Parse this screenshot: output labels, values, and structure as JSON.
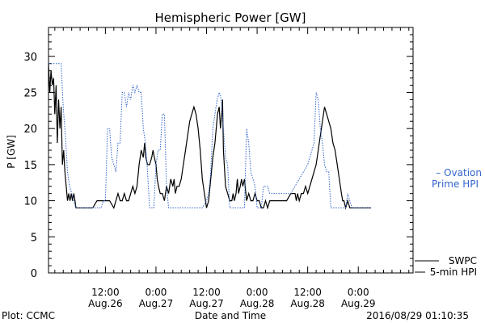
{
  "chart_data": {
    "type": "line",
    "title": "Hemispheric Power [GW]",
    "ylabel": "P [GW]",
    "xlabel": "Date and Time",
    "ylim": [
      0,
      34
    ],
    "y_ticks": [
      0,
      5,
      10,
      15,
      20,
      25,
      30
    ],
    "x_range_hours": [
      -1.5,
      85
    ],
    "x_ticks": [
      {
        "hour": 12,
        "line1": "12:00",
        "line2": "Aug.26"
      },
      {
        "hour": 24,
        "line1": "0:00",
        "line2": "Aug.27"
      },
      {
        "hour": 36,
        "line1": "12:00",
        "line2": "Aug.27"
      },
      {
        "hour": 48,
        "line1": "0:00",
        "line2": "Aug.28"
      },
      {
        "hour": 60,
        "line1": "12:00",
        "line2": "Aug.28"
      },
      {
        "hour": 72,
        "line1": "0:00",
        "line2": "Aug.29"
      }
    ],
    "grid": false,
    "series": [
      {
        "name": "SWPC 5-min HPI",
        "legend_lines": [
          "SWPC",
          "5-min HPI"
        ],
        "color": "#000000",
        "style": "solid",
        "points": [
          [
            -1.5,
            29
          ],
          [
            -1.2,
            25
          ],
          [
            -0.9,
            28
          ],
          [
            -0.6,
            26
          ],
          [
            -0.3,
            27
          ],
          [
            0,
            22
          ],
          [
            0.3,
            26
          ],
          [
            0.6,
            18
          ],
          [
            0.9,
            24
          ],
          [
            1.2,
            20
          ],
          [
            1.5,
            23
          ],
          [
            1.8,
            15
          ],
          [
            2.1,
            17
          ],
          [
            2.4,
            14
          ],
          [
            2.7,
            12
          ],
          [
            3,
            10
          ],
          [
            3.3,
            11
          ],
          [
            3.6,
            10
          ],
          [
            3.9,
            11
          ],
          [
            4.2,
            10
          ],
          [
            4.5,
            11
          ],
          [
            4.8,
            10
          ],
          [
            5,
            9
          ],
          [
            6,
            9
          ],
          [
            7,
            9
          ],
          [
            8,
            9
          ],
          [
            9,
            9
          ],
          [
            10,
            10
          ],
          [
            11,
            10
          ],
          [
            12,
            10
          ],
          [
            13,
            10
          ],
          [
            14,
            9
          ],
          [
            14.5,
            10
          ],
          [
            15,
            11
          ],
          [
            15.5,
            10
          ],
          [
            16,
            10
          ],
          [
            16.5,
            11
          ],
          [
            17,
            10
          ],
          [
            17.5,
            10
          ],
          [
            18,
            11
          ],
          [
            18.5,
            12
          ],
          [
            19,
            11
          ],
          [
            19.5,
            12
          ],
          [
            20,
            15
          ],
          [
            20.5,
            17
          ],
          [
            21,
            16
          ],
          [
            21.3,
            18
          ],
          [
            21.6,
            16
          ],
          [
            22,
            15
          ],
          [
            22.5,
            15
          ],
          [
            23,
            16
          ],
          [
            23.3,
            17
          ],
          [
            23.6,
            16
          ],
          [
            24,
            15
          ],
          [
            24.3,
            13
          ],
          [
            24.6,
            12
          ],
          [
            25,
            11
          ],
          [
            25.5,
            11
          ],
          [
            26,
            10
          ],
          [
            26.5,
            12
          ],
          [
            27,
            11
          ],
          [
            27.5,
            13
          ],
          [
            28,
            12
          ],
          [
            28.3,
            13
          ],
          [
            28.6,
            11
          ],
          [
            29,
            12
          ],
          [
            29.5,
            12
          ],
          [
            30,
            13
          ],
          [
            30.5,
            15
          ],
          [
            31,
            17
          ],
          [
            31.5,
            19
          ],
          [
            32,
            21
          ],
          [
            32.5,
            22
          ],
          [
            33,
            23
          ],
          [
            33.5,
            22
          ],
          [
            34,
            20
          ],
          [
            34.5,
            17
          ],
          [
            35,
            13
          ],
          [
            35.5,
            11
          ],
          [
            36,
            9
          ],
          [
            36.5,
            10
          ],
          [
            37,
            13
          ],
          [
            37.5,
            16
          ],
          [
            38,
            18
          ],
          [
            38.3,
            20
          ],
          [
            38.6,
            22
          ],
          [
            39,
            23
          ],
          [
            39.3,
            20
          ],
          [
            39.6,
            22
          ],
          [
            39.8,
            24
          ],
          [
            40,
            17
          ],
          [
            40.5,
            12
          ],
          [
            41,
            11
          ],
          [
            41.5,
            10
          ],
          [
            42,
            10
          ],
          [
            42.3,
            11
          ],
          [
            42.6,
            10
          ],
          [
            43,
            11
          ],
          [
            43.3,
            13
          ],
          [
            43.6,
            11
          ],
          [
            44,
            12
          ],
          [
            44.3,
            13
          ],
          [
            44.6,
            12
          ],
          [
            45,
            13
          ],
          [
            45.5,
            10
          ],
          [
            46,
            11
          ],
          [
            46.5,
            10
          ],
          [
            47,
            10
          ],
          [
            47.5,
            11
          ],
          [
            48,
            10
          ],
          [
            48.5,
            10
          ],
          [
            49,
            9
          ],
          [
            49.5,
            9
          ],
          [
            50,
            10
          ],
          [
            50.5,
            9
          ],
          [
            51,
            10
          ],
          [
            52,
            10
          ],
          [
            53,
            10
          ],
          [
            54,
            10
          ],
          [
            55,
            10
          ],
          [
            56,
            11
          ],
          [
            57,
            11
          ],
          [
            57.3,
            10
          ],
          [
            57.6,
            11
          ],
          [
            58,
            10
          ],
          [
            58.5,
            11
          ],
          [
            59,
            11
          ],
          [
            59.5,
            12
          ],
          [
            60,
            11
          ],
          [
            60.5,
            12
          ],
          [
            61,
            13
          ],
          [
            61.5,
            14
          ],
          [
            62,
            15
          ],
          [
            62.5,
            17
          ],
          [
            63,
            19
          ],
          [
            63.5,
            21
          ],
          [
            64,
            23
          ],
          [
            64.5,
            22
          ],
          [
            65,
            21
          ],
          [
            65.5,
            20
          ],
          [
            66,
            18
          ],
          [
            66.5,
            17
          ],
          [
            67,
            15
          ],
          [
            67.5,
            13
          ],
          [
            68,
            11
          ],
          [
            68.3,
            10
          ],
          [
            68.6,
            10
          ],
          [
            69,
            9
          ],
          [
            69.5,
            10
          ],
          [
            70,
            9
          ],
          [
            70.5,
            9
          ],
          [
            71,
            9
          ],
          [
            72,
            9
          ],
          [
            73,
            9
          ],
          [
            74,
            9
          ],
          [
            75,
            9
          ]
        ]
      },
      {
        "name": "Ovation Prime HPI",
        "legend_lines": [
          "– Ovation",
          "Prime HPI"
        ],
        "color": "#3366cc",
        "style": "dotted",
        "points": [
          [
            -1.5,
            29
          ],
          [
            0,
            29
          ],
          [
            1,
            29
          ],
          [
            1.5,
            29
          ],
          [
            2,
            23
          ],
          [
            2.5,
            19
          ],
          [
            3,
            14
          ],
          [
            3.5,
            12
          ],
          [
            4,
            11
          ],
          [
            4.5,
            10
          ],
          [
            5,
            9
          ],
          [
            6,
            9
          ],
          [
            7,
            9
          ],
          [
            8,
            9
          ],
          [
            9,
            9
          ],
          [
            10,
            9
          ],
          [
            10.5,
            9
          ],
          [
            11,
            9
          ],
          [
            11.5,
            10
          ],
          [
            12,
            10
          ],
          [
            12.5,
            20
          ],
          [
            13,
            20
          ],
          [
            13.5,
            16
          ],
          [
            14,
            15
          ],
          [
            14.5,
            14
          ],
          [
            15,
            18
          ],
          [
            15.5,
            18
          ],
          [
            16,
            25
          ],
          [
            16.5,
            25
          ],
          [
            17,
            23
          ],
          [
            17.5,
            25
          ],
          [
            18,
            24
          ],
          [
            18.5,
            26
          ],
          [
            19,
            25
          ],
          [
            19.5,
            26
          ],
          [
            20,
            25
          ],
          [
            20.5,
            25
          ],
          [
            21,
            20
          ],
          [
            21.5,
            18
          ],
          [
            22,
            14
          ],
          [
            22.5,
            9
          ],
          [
            23,
            9
          ],
          [
            23.5,
            9
          ],
          [
            24,
            15
          ],
          [
            24.5,
            17
          ],
          [
            25,
            17
          ],
          [
            25.5,
            22
          ],
          [
            26,
            22
          ],
          [
            26.5,
            12
          ],
          [
            27,
            9
          ],
          [
            28,
            9
          ],
          [
            29,
            9
          ],
          [
            30,
            9
          ],
          [
            31,
            9
          ],
          [
            32,
            9
          ],
          [
            33,
            9
          ],
          [
            34,
            9
          ],
          [
            35,
            9
          ],
          [
            36,
            10
          ],
          [
            36.5,
            11
          ],
          [
            37,
            14
          ],
          [
            37.5,
            20
          ],
          [
            38,
            22
          ],
          [
            38.5,
            24
          ],
          [
            39,
            25
          ],
          [
            39.5,
            24
          ],
          [
            40,
            20
          ],
          [
            40.5,
            16
          ],
          [
            41,
            15
          ],
          [
            41.5,
            9
          ],
          [
            42,
            9
          ],
          [
            43,
            9
          ],
          [
            44,
            9
          ],
          [
            45,
            9
          ],
          [
            45.5,
            20
          ],
          [
            46,
            18
          ],
          [
            46.5,
            14
          ],
          [
            47,
            13
          ],
          [
            47.5,
            12
          ],
          [
            48,
            9
          ],
          [
            48.5,
            9
          ],
          [
            49,
            9
          ],
          [
            49.5,
            12
          ],
          [
            50,
            12
          ],
          [
            50.5,
            12
          ],
          [
            51,
            11
          ],
          [
            52,
            11
          ],
          [
            53,
            11
          ],
          [
            54,
            11
          ],
          [
            55,
            11
          ],
          [
            56,
            11
          ],
          [
            57,
            12
          ],
          [
            58,
            13
          ],
          [
            59,
            14
          ],
          [
            60,
            15
          ],
          [
            60.5,
            16
          ],
          [
            61,
            17
          ],
          [
            61.5,
            18
          ],
          [
            62,
            25
          ],
          [
            62.5,
            24
          ],
          [
            63,
            20
          ],
          [
            63.5,
            18
          ],
          [
            64,
            15
          ],
          [
            64.5,
            14
          ],
          [
            65,
            14
          ],
          [
            65.5,
            9
          ],
          [
            66,
            9
          ],
          [
            66.5,
            9
          ],
          [
            67,
            9
          ],
          [
            68,
            9
          ],
          [
            69,
            9
          ],
          [
            69.5,
            11
          ],
          [
            70,
            10
          ],
          [
            70.5,
            9
          ],
          [
            71,
            9
          ],
          [
            72,
            9
          ],
          [
            73,
            9
          ],
          [
            74,
            9
          ],
          [
            75,
            9
          ]
        ]
      }
    ],
    "footer": {
      "left": "Plot: CCMC",
      "right": "2016/08/29 01:10:35"
    }
  }
}
